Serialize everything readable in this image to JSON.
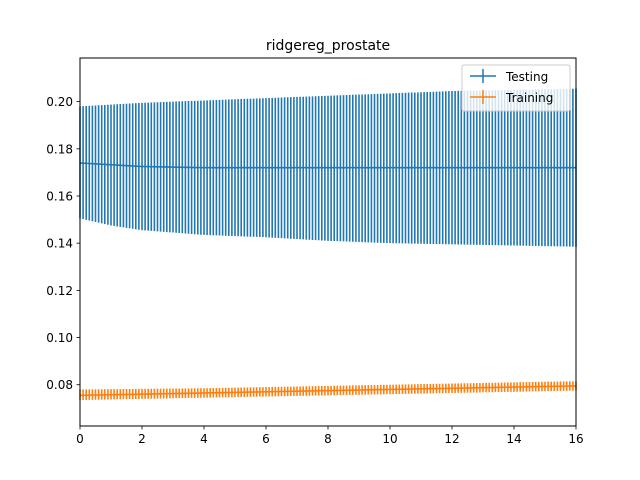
{
  "chart_data": {
    "type": "line",
    "title": "ridgereg_prostate",
    "xlabel": "",
    "ylabel": "",
    "xlim": [
      0,
      16
    ],
    "ylim": [
      0.0625,
      0.2185
    ],
    "xticks": [
      0,
      2,
      4,
      6,
      8,
      10,
      12,
      14,
      16
    ],
    "xtick_labels": [
      "0",
      "2",
      "4",
      "6",
      "8",
      "10",
      "12",
      "14",
      "16"
    ],
    "yticks": [
      0.08,
      0.1,
      0.12,
      0.14,
      0.16,
      0.18,
      0.2
    ],
    "ytick_labels": [
      "0.08",
      "0.10",
      "0.12",
      "0.14",
      "0.16",
      "0.18",
      "0.20"
    ],
    "grid": false,
    "legend": "top-right",
    "x_start": 0,
    "x_end": 16,
    "x_step": 0.1,
    "series": [
      {
        "name": "Testing",
        "color": "#1f77b4",
        "marker": "errorbar",
        "mean_points": [
          [
            0,
            0.174
          ],
          [
            2,
            0.1725
          ],
          [
            4,
            0.172
          ],
          [
            6,
            0.172
          ],
          [
            8,
            0.172
          ],
          [
            10,
            0.172
          ],
          [
            12,
            0.172
          ],
          [
            16,
            0.172
          ]
        ],
        "upper_points": [
          [
            0,
            0.198
          ],
          [
            2,
            0.1995
          ],
          [
            4,
            0.2005
          ],
          [
            6,
            0.2015
          ],
          [
            8,
            0.2025
          ],
          [
            10,
            0.2035
          ],
          [
            12,
            0.2045
          ],
          [
            16,
            0.2055
          ]
        ],
        "lower_points": [
          [
            0,
            0.1505
          ],
          [
            1,
            0.1475
          ],
          [
            2,
            0.1455
          ],
          [
            4,
            0.1435
          ],
          [
            6,
            0.1425
          ],
          [
            8,
            0.141
          ],
          [
            10,
            0.14
          ],
          [
            12,
            0.1395
          ],
          [
            14,
            0.139
          ],
          [
            16,
            0.1385
          ]
        ]
      },
      {
        "name": "Training",
        "color": "#ff7f0e",
        "marker": "errorbar",
        "mean_points": [
          [
            0,
            0.0755
          ],
          [
            4,
            0.0765
          ],
          [
            8,
            0.0775
          ],
          [
            12,
            0.0785
          ],
          [
            16,
            0.0795
          ]
        ],
        "upper_points": [
          [
            0,
            0.078
          ],
          [
            4,
            0.0785
          ],
          [
            8,
            0.0795
          ],
          [
            12,
            0.0805
          ],
          [
            16,
            0.0815
          ]
        ],
        "lower_points": [
          [
            0,
            0.0735
          ],
          [
            4,
            0.0745
          ],
          [
            8,
            0.0755
          ],
          [
            12,
            0.0765
          ],
          [
            16,
            0.0775
          ]
        ]
      }
    ]
  }
}
